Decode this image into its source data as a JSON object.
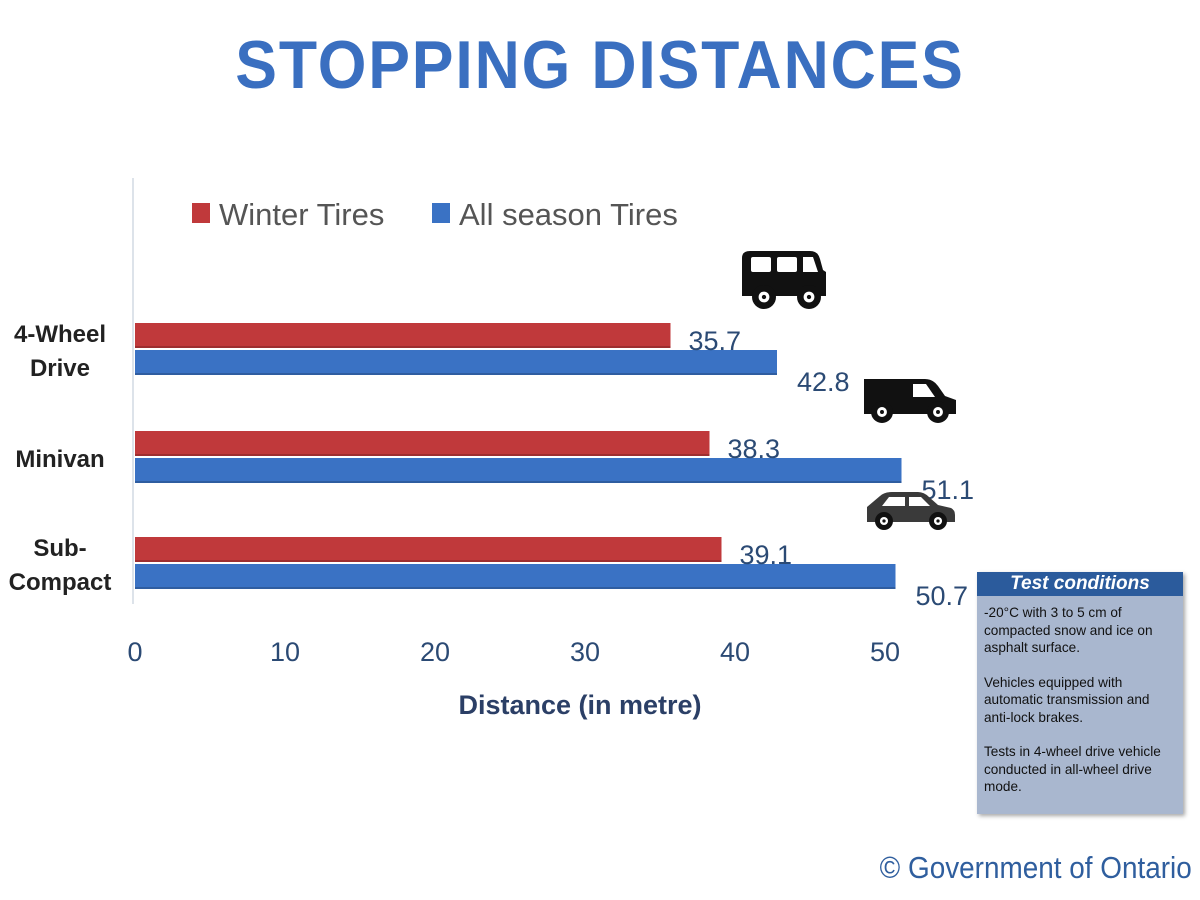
{
  "title": "STOPPING DISTANCES",
  "colors": {
    "winter": "#c0393b",
    "all_season": "#3a72c4",
    "title": "#3a6fc0",
    "box_header": "#2b5b9c",
    "box_body": "#a9b7cf"
  },
  "chart_data": {
    "type": "bar",
    "orientation": "horizontal",
    "categories": [
      "4-Wheel Drive",
      "Minivan",
      "Sub-Compact"
    ],
    "category_lines": [
      [
        "4-Wheel",
        "Drive"
      ],
      [
        "Minivan"
      ],
      [
        "Sub-",
        "Compact"
      ]
    ],
    "category_icons": [
      "suv-icon",
      "van-icon",
      "car-icon"
    ],
    "series": [
      {
        "name": "Winter Tires",
        "values": [
          35.7,
          38.3,
          39.1
        ]
      },
      {
        "name": "All season Tires",
        "values": [
          42.8,
          51.1,
          50.7
        ]
      }
    ],
    "value_labels": [
      [
        "35.7",
        "38.3",
        "39.1"
      ],
      [
        "42.8",
        "51.1",
        "50.7"
      ]
    ],
    "xlabel": "Distance (in metre)",
    "ylabel": "",
    "xticks": [
      "0",
      "10",
      "20",
      "30",
      "40",
      "50"
    ],
    "xlim": [
      0,
      50
    ],
    "grid": false,
    "legend_position": "top-left"
  },
  "test_conditions": {
    "heading": "Test conditions",
    "paragraphs": [
      "-20°C with 3 to 5 cm of compacted snow and ice on asphalt surface.",
      "Vehicles equipped with automatic transmission and anti-lock brakes.",
      "Tests in 4-wheel drive vehicle conducted in all-wheel drive mode."
    ]
  },
  "copyright": "© Government of Ontario"
}
